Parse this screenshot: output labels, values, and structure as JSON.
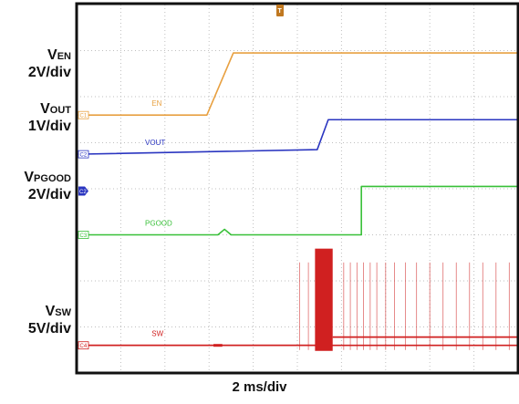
{
  "chart_data": {
    "type": "line",
    "title": "",
    "xlabel": "2 ms/div",
    "ylabel": "",
    "grid": true,
    "x_divisions": 10,
    "y_divisions": 8,
    "channels": [
      {
        "name": "EN",
        "marker": "C1",
        "color": "#e8a040",
        "axis_label": {
          "signal": "V",
          "sub": "EN",
          "scale": "2V/div"
        },
        "low_div": 5.6,
        "high_div": 6.95,
        "points_div": [
          [
            0,
            5.6
          ],
          [
            2.95,
            5.6
          ],
          [
            3.55,
            6.95
          ],
          [
            10,
            6.95
          ]
        ]
      },
      {
        "name": "VOUT",
        "marker": "C2",
        "color": "#2a35c0",
        "axis_label": {
          "signal": "V",
          "sub": "OUT",
          "scale": "1V/div"
        },
        "low_div": 4.75,
        "high_div": 5.5,
        "points_div": [
          [
            0,
            4.75
          ],
          [
            5.45,
            4.85
          ],
          [
            5.7,
            5.5
          ],
          [
            10,
            5.5
          ]
        ]
      },
      {
        "name": "PGOOD",
        "marker": "C3",
        "color": "#38c038",
        "axis_label": {
          "signal": "V",
          "sub": "PGOOD",
          "scale": "2V/div"
        },
        "low_div": 3.0,
        "high_div": 4.05,
        "points_div": [
          [
            0,
            3.0
          ],
          [
            3.2,
            3.0
          ],
          [
            3.35,
            3.12
          ],
          [
            3.5,
            3.0
          ],
          [
            6.45,
            3.0
          ],
          [
            6.45,
            4.05
          ],
          [
            10,
            4.05
          ]
        ]
      },
      {
        "name": "SW",
        "marker": "C4",
        "color": "#d02020",
        "axis_label": {
          "signal": "V",
          "sub": "SW",
          "scale": "5V/div"
        },
        "low_div": 0.6,
        "high_div": 0.78,
        "burst_start_div": 5.4,
        "burst_end_div": 5.8,
        "burst_top_div": 2.7,
        "pulses_div": [
          5.05,
          5.25,
          6.05,
          6.2,
          6.35,
          6.5,
          6.65,
          6.8,
          7.0,
          7.2,
          7.45,
          7.7,
          8.0,
          8.3,
          8.6,
          8.9,
          9.2,
          9.5,
          9.8
        ],
        "pulse_top_div": 2.4
      }
    ],
    "ch2_ground_marker": "C2",
    "trigger_marker": "T"
  }
}
